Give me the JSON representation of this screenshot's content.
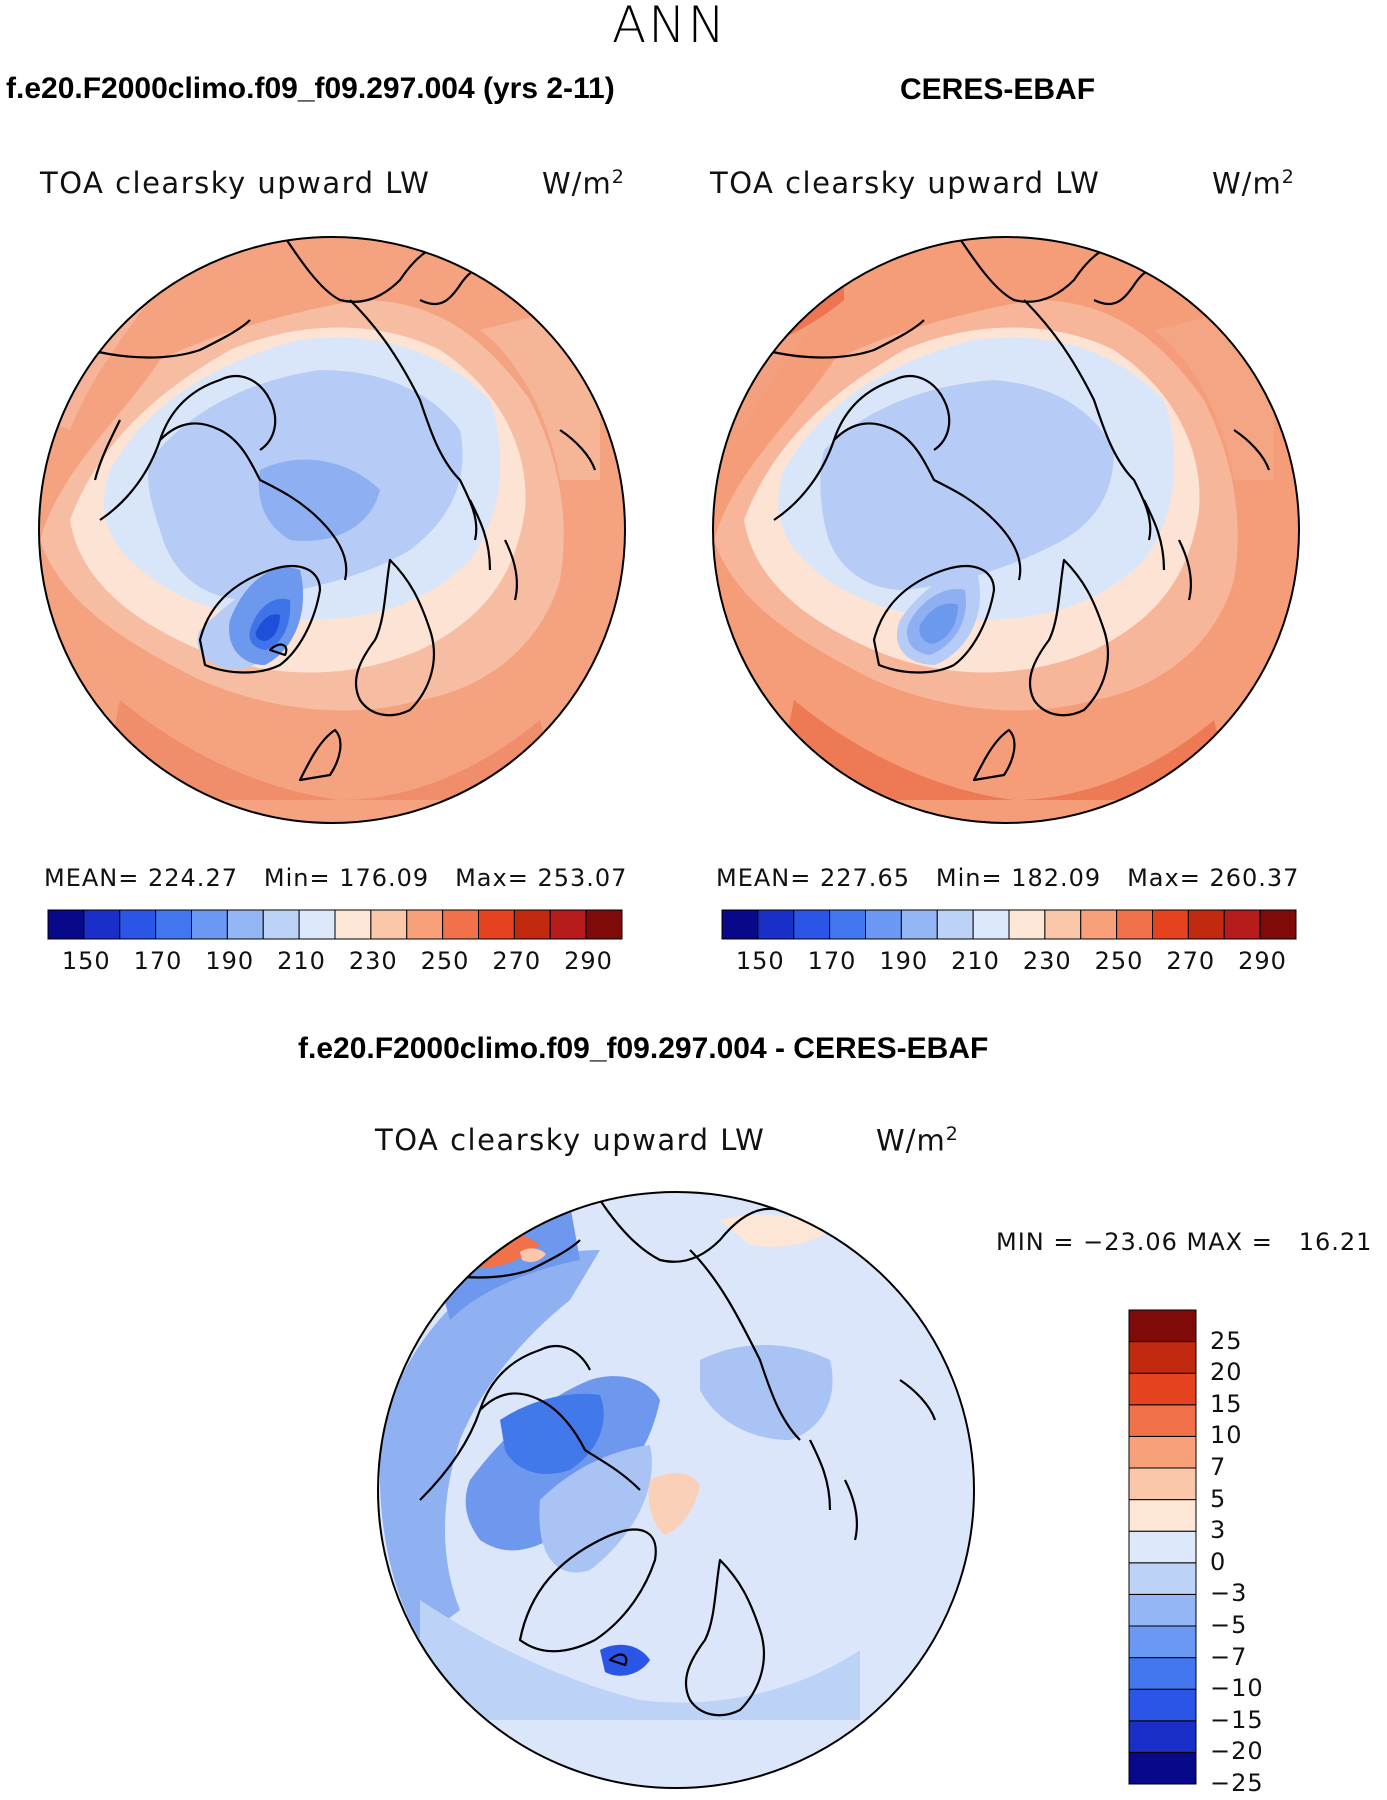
{
  "header": {
    "season": "ANN",
    "left_case": "f.e20.F2000climo.f09_f09.297.004 (yrs 2-11)",
    "right_case": "CERES-EBAF",
    "diff_case": "f.e20.F2000climo.f09_f09.297.004 - CERES-EBAF"
  },
  "panels": {
    "left": {
      "variable": "TOA clearsky upward LW",
      "units": "W/m",
      "units_exp": "2",
      "mean_label": "MEAN=",
      "mean": "224.27",
      "min_label": "Min=",
      "min": "176.09",
      "max_label": "Max=",
      "max": "253.07"
    },
    "right": {
      "variable": "TOA clearsky upward LW",
      "units": "W/m",
      "units_exp": "2",
      "mean_label": "MEAN=",
      "mean": "227.65",
      "min_label": "Min=",
      "min": "182.09",
      "max_label": "Max=",
      "max": "260.37"
    },
    "diff": {
      "variable": "TOA clearsky upward LW",
      "units": "W/m",
      "units_exp": "2",
      "minmax_text": "MIN = −23.06 MAX =   16.21"
    }
  },
  "colors": {
    "abs_scale": [
      "#08088a",
      "#1a2ec8",
      "#2a55e6",
      "#4377f0",
      "#6a98f2",
      "#94b6f4",
      "#bdd2f7",
      "#dde8fa",
      "#fde6d6",
      "#fbc7aa",
      "#f7a07a",
      "#f1714b",
      "#e5431f",
      "#c22a10",
      "#b71c1c",
      "#7f0a0a"
    ],
    "diff_scale": [
      "#08088a",
      "#1a2ec8",
      "#2a55e6",
      "#4377f0",
      "#6a98f2",
      "#94b6f4",
      "#bdd2f7",
      "#dde8fa",
      "#fde6d6",
      "#fbc7aa",
      "#f7a07a",
      "#f1714b",
      "#e5431f",
      "#c22a10",
      "#7f0a0a"
    ]
  },
  "chart_data": [
    {
      "type": "heatmap",
      "subtype": "polar stereographic contour map (north pole)",
      "title": "TOA clearsky upward LW",
      "case": "f.e20.F2000climo.f09_f09.297.004 (yrs 2-11)",
      "units": "W/m^2",
      "stats": {
        "mean": 224.27,
        "min": 176.09,
        "max": 253.07
      },
      "colorbar": {
        "orientation": "horizontal",
        "tick_labels": [
          "150",
          "170",
          "190",
          "210",
          "230",
          "250",
          "270",
          "290"
        ]
      }
    },
    {
      "type": "heatmap",
      "subtype": "polar stereographic contour map (north pole)",
      "title": "TOA clearsky upward LW",
      "case": "CERES-EBAF",
      "units": "W/m^2",
      "stats": {
        "mean": 227.65,
        "min": 182.09,
        "max": 260.37
      },
      "colorbar": {
        "orientation": "horizontal",
        "tick_labels": [
          "150",
          "170",
          "190",
          "210",
          "230",
          "250",
          "270",
          "290"
        ]
      }
    },
    {
      "type": "heatmap",
      "subtype": "polar stereographic difference map (north pole)",
      "title": "TOA clearsky upward LW",
      "case": "f.e20.F2000climo.f09_f09.297.004 - CERES-EBAF",
      "units": "W/m^2",
      "stats": {
        "min": -23.06,
        "max": 16.21
      },
      "colorbar": {
        "orientation": "vertical",
        "tick_labels": [
          "25",
          "20",
          "15",
          "10",
          "7",
          "5",
          "3",
          "0",
          "−3",
          "−5",
          "−7",
          "−10",
          "−15",
          "−20",
          "−25"
        ]
      }
    }
  ]
}
